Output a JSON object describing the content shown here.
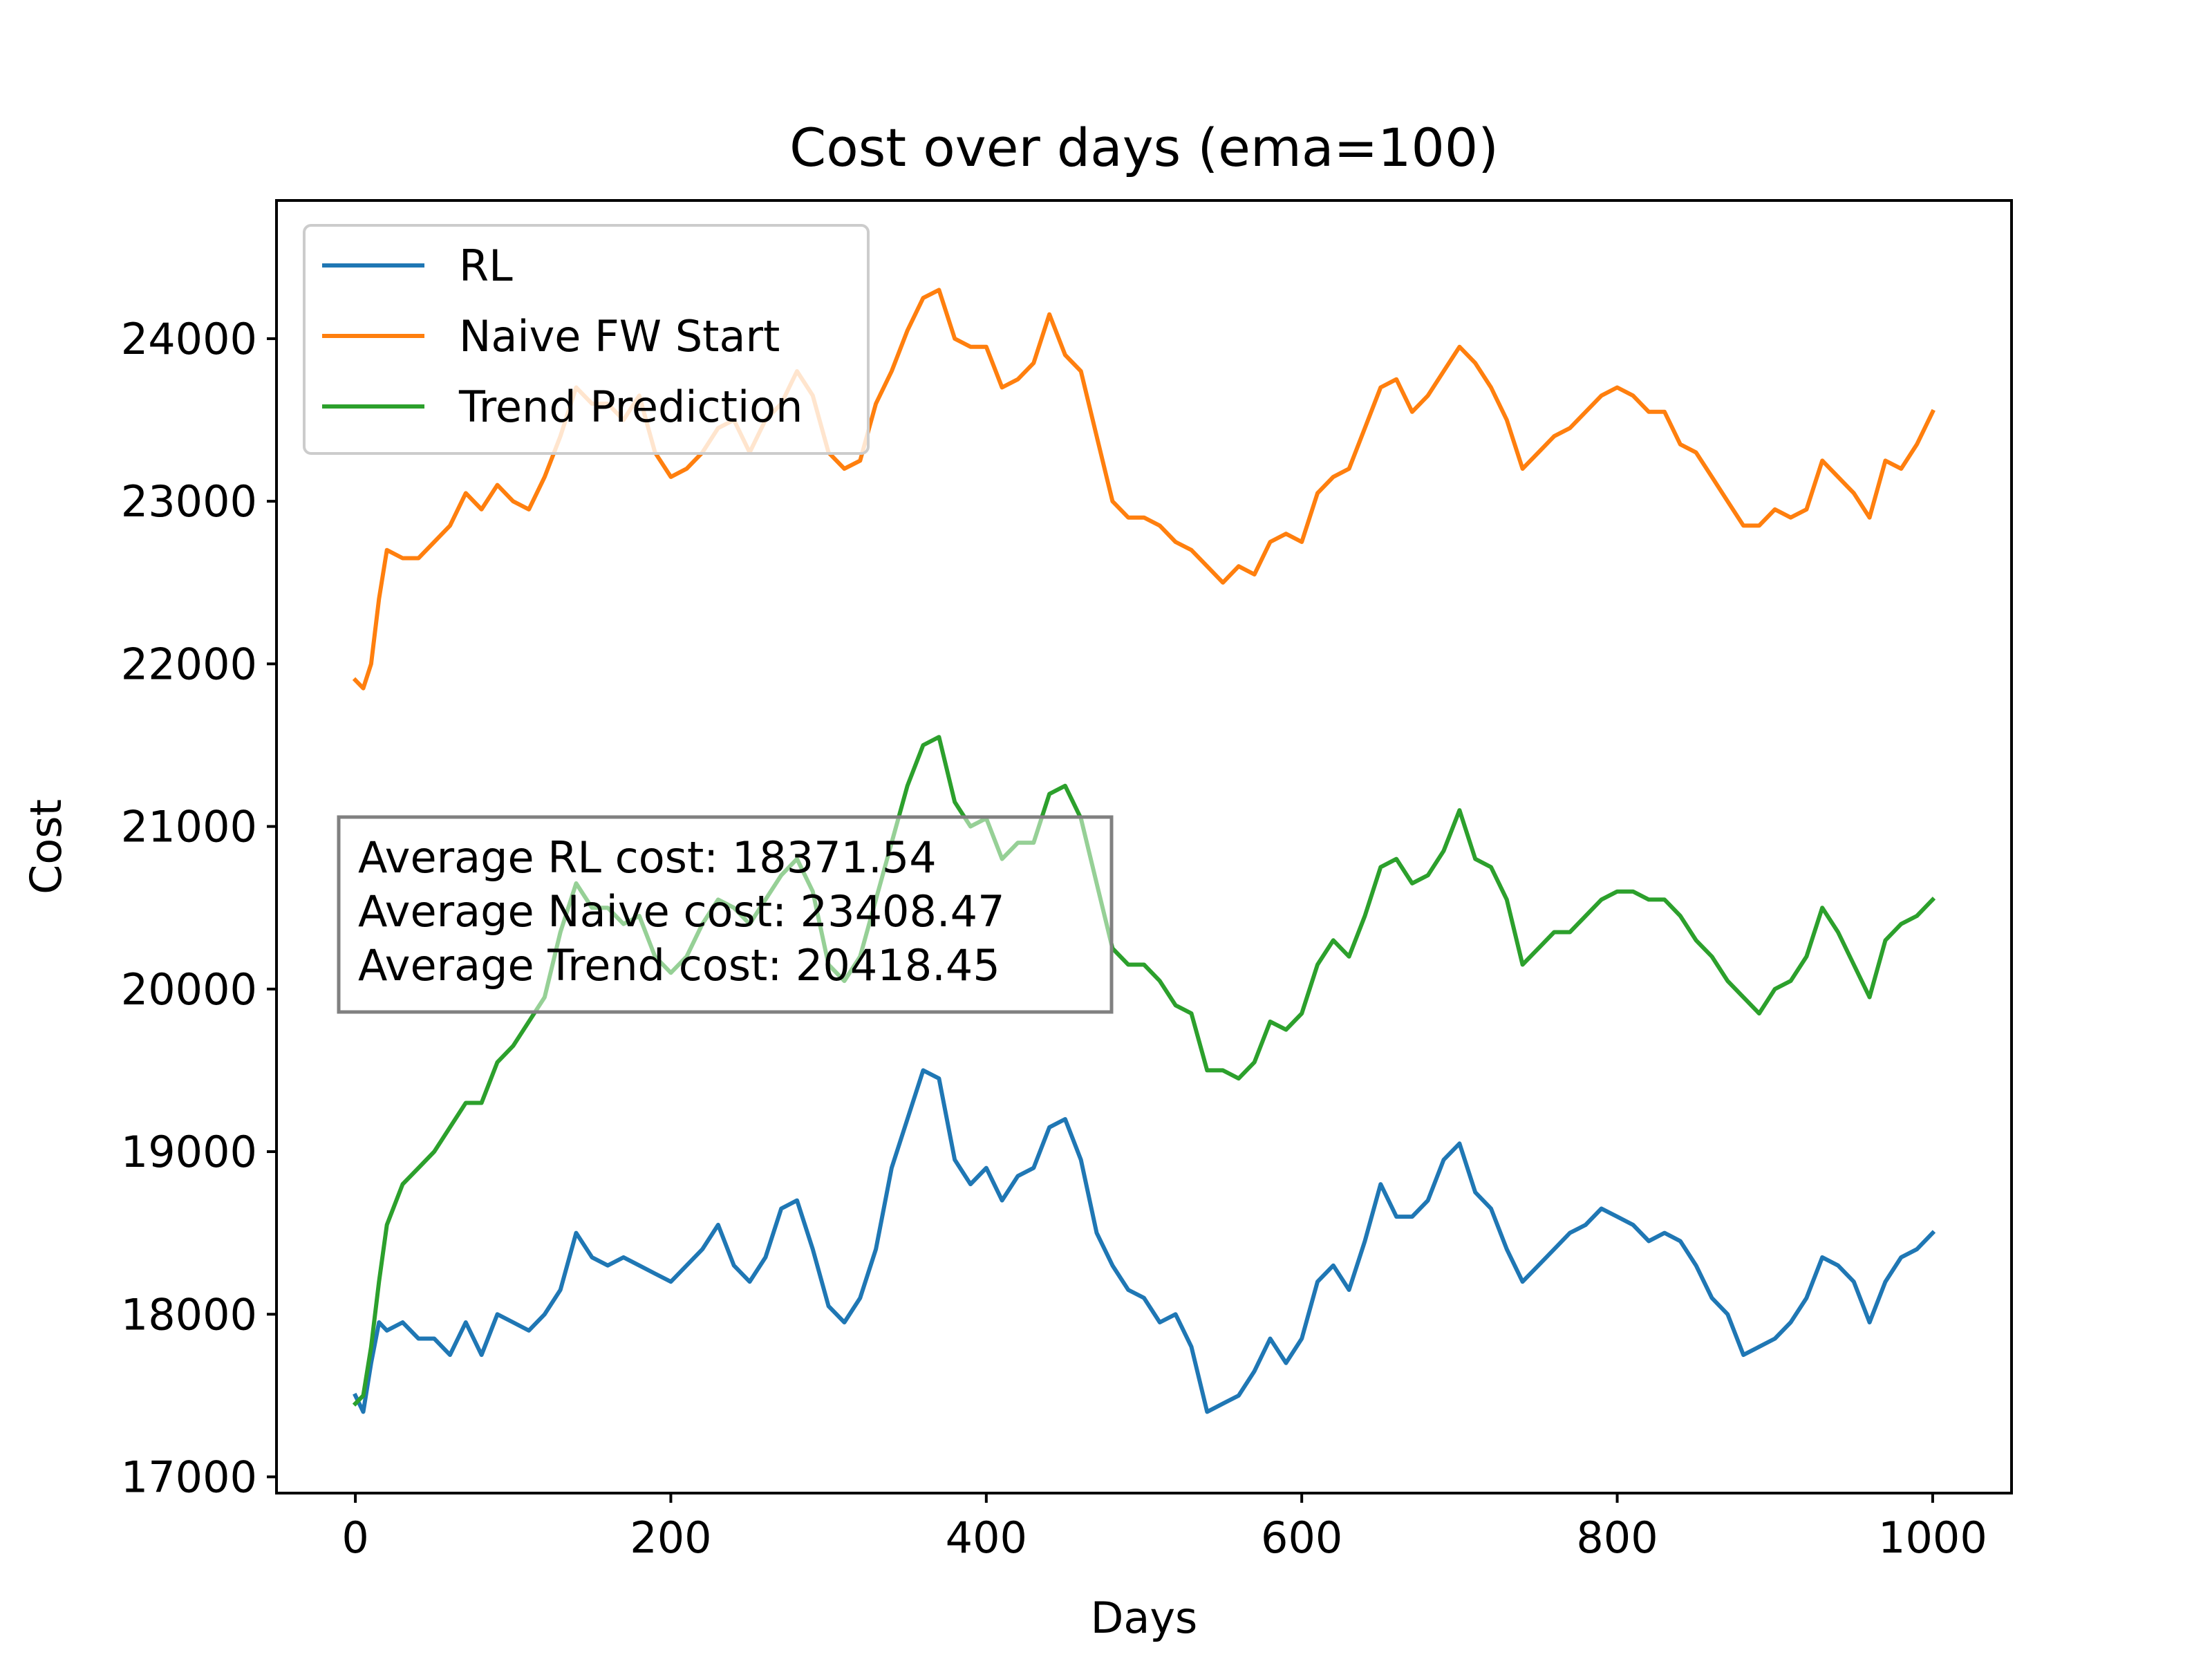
{
  "chart_data": {
    "type": "line",
    "title": "Cost over days (ema=100)",
    "xlabel": "Days",
    "ylabel": "Cost",
    "xlim": [
      -50,
      1050
    ],
    "ylim": [
      16900,
      24850
    ],
    "xticks": [
      0,
      200,
      400,
      600,
      800,
      1000
    ],
    "yticks": [
      17000,
      18000,
      19000,
      20000,
      21000,
      22000,
      23000,
      24000
    ],
    "xtick_labels": [
      "0",
      "200",
      "400",
      "600",
      "800",
      "1000"
    ],
    "ytick_labels": [
      "17000",
      "18000",
      "19000",
      "20000",
      "21000",
      "22000",
      "23000",
      "24000"
    ],
    "grid": false,
    "legend_position": "upper left",
    "series": [
      {
        "name": "RL",
        "color": "#1f77b4",
        "points": [
          [
            0,
            17500
          ],
          [
            5,
            17400
          ],
          [
            10,
            17700
          ],
          [
            15,
            17950
          ],
          [
            20,
            17900
          ],
          [
            30,
            17950
          ],
          [
            40,
            17850
          ],
          [
            50,
            17850
          ],
          [
            60,
            17750
          ],
          [
            70,
            17950
          ],
          [
            80,
            17750
          ],
          [
            90,
            18000
          ],
          [
            100,
            17950
          ],
          [
            110,
            17900
          ],
          [
            120,
            18000
          ],
          [
            130,
            18150
          ],
          [
            140,
            18500
          ],
          [
            150,
            18350
          ],
          [
            160,
            18300
          ],
          [
            170,
            18350
          ],
          [
            180,
            18300
          ],
          [
            190,
            18250
          ],
          [
            200,
            18200
          ],
          [
            210,
            18300
          ],
          [
            220,
            18400
          ],
          [
            230,
            18550
          ],
          [
            240,
            18300
          ],
          [
            250,
            18200
          ],
          [
            260,
            18350
          ],
          [
            270,
            18650
          ],
          [
            280,
            18700
          ],
          [
            290,
            18400
          ],
          [
            300,
            18050
          ],
          [
            310,
            17950
          ],
          [
            320,
            18100
          ],
          [
            330,
            18400
          ],
          [
            340,
            18900
          ],
          [
            350,
            19200
          ],
          [
            360,
            19500
          ],
          [
            370,
            19450
          ],
          [
            380,
            18950
          ],
          [
            390,
            18800
          ],
          [
            400,
            18900
          ],
          [
            410,
            18700
          ],
          [
            420,
            18850
          ],
          [
            430,
            18900
          ],
          [
            440,
            19150
          ],
          [
            450,
            19200
          ],
          [
            460,
            18950
          ],
          [
            470,
            18500
          ],
          [
            480,
            18300
          ],
          [
            490,
            18150
          ],
          [
            500,
            18100
          ],
          [
            510,
            17950
          ],
          [
            520,
            18000
          ],
          [
            530,
            17800
          ],
          [
            540,
            17400
          ],
          [
            550,
            17450
          ],
          [
            560,
            17500
          ],
          [
            570,
            17650
          ],
          [
            580,
            17850
          ],
          [
            590,
            17700
          ],
          [
            600,
            17850
          ],
          [
            610,
            18200
          ],
          [
            620,
            18300
          ],
          [
            630,
            18150
          ],
          [
            640,
            18450
          ],
          [
            650,
            18800
          ],
          [
            660,
            18600
          ],
          [
            670,
            18600
          ],
          [
            680,
            18700
          ],
          [
            690,
            18950
          ],
          [
            700,
            19050
          ],
          [
            710,
            18750
          ],
          [
            720,
            18650
          ],
          [
            730,
            18400
          ],
          [
            740,
            18200
          ],
          [
            750,
            18300
          ],
          [
            760,
            18400
          ],
          [
            770,
            18500
          ],
          [
            780,
            18550
          ],
          [
            790,
            18650
          ],
          [
            800,
            18600
          ],
          [
            810,
            18550
          ],
          [
            820,
            18450
          ],
          [
            830,
            18500
          ],
          [
            840,
            18450
          ],
          [
            850,
            18300
          ],
          [
            860,
            18100
          ],
          [
            870,
            18000
          ],
          [
            880,
            17750
          ],
          [
            890,
            17800
          ],
          [
            900,
            17850
          ],
          [
            910,
            17950
          ],
          [
            920,
            18100
          ],
          [
            930,
            18350
          ],
          [
            940,
            18300
          ],
          [
            950,
            18200
          ],
          [
            960,
            17950
          ],
          [
            970,
            18200
          ],
          [
            980,
            18350
          ],
          [
            990,
            18400
          ],
          [
            1000,
            18500
          ]
        ]
      },
      {
        "name": "Naive FW Start",
        "color": "#ff7f0e",
        "points": [
          [
            0,
            21900
          ],
          [
            5,
            21850
          ],
          [
            10,
            22000
          ],
          [
            15,
            22400
          ],
          [
            20,
            22700
          ],
          [
            30,
            22650
          ],
          [
            40,
            22650
          ],
          [
            50,
            22750
          ],
          [
            60,
            22850
          ],
          [
            70,
            23050
          ],
          [
            80,
            22950
          ],
          [
            90,
            23100
          ],
          [
            100,
            23000
          ],
          [
            110,
            22950
          ],
          [
            120,
            23150
          ],
          [
            130,
            23400
          ],
          [
            140,
            23700
          ],
          [
            150,
            23600
          ],
          [
            160,
            23600
          ],
          [
            170,
            23500
          ],
          [
            180,
            23650
          ],
          [
            190,
            23300
          ],
          [
            200,
            23150
          ],
          [
            210,
            23200
          ],
          [
            220,
            23300
          ],
          [
            230,
            23450
          ],
          [
            240,
            23500
          ],
          [
            250,
            23300
          ],
          [
            260,
            23500
          ],
          [
            270,
            23600
          ],
          [
            280,
            23800
          ],
          [
            290,
            23650
          ],
          [
            300,
            23300
          ],
          [
            310,
            23200
          ],
          [
            320,
            23250
          ],
          [
            330,
            23600
          ],
          [
            340,
            23800
          ],
          [
            350,
            24050
          ],
          [
            360,
            24250
          ],
          [
            370,
            24300
          ],
          [
            380,
            24000
          ],
          [
            390,
            23950
          ],
          [
            400,
            23950
          ],
          [
            410,
            23700
          ],
          [
            420,
            23750
          ],
          [
            430,
            23850
          ],
          [
            440,
            24150
          ],
          [
            450,
            23900
          ],
          [
            460,
            23800
          ],
          [
            470,
            23400
          ],
          [
            480,
            23000
          ],
          [
            490,
            22900
          ],
          [
            500,
            22900
          ],
          [
            510,
            22850
          ],
          [
            520,
            22750
          ],
          [
            530,
            22700
          ],
          [
            540,
            22600
          ],
          [
            550,
            22500
          ],
          [
            560,
            22600
          ],
          [
            570,
            22550
          ],
          [
            580,
            22750
          ],
          [
            590,
            22800
          ],
          [
            600,
            22750
          ],
          [
            610,
            23050
          ],
          [
            620,
            23150
          ],
          [
            630,
            23200
          ],
          [
            640,
            23450
          ],
          [
            650,
            23700
          ],
          [
            660,
            23750
          ],
          [
            670,
            23550
          ],
          [
            680,
            23650
          ],
          [
            690,
            23800
          ],
          [
            700,
            23950
          ],
          [
            710,
            23850
          ],
          [
            720,
            23700
          ],
          [
            730,
            23500
          ],
          [
            740,
            23200
          ],
          [
            750,
            23300
          ],
          [
            760,
            23400
          ],
          [
            770,
            23450
          ],
          [
            780,
            23550
          ],
          [
            790,
            23650
          ],
          [
            800,
            23700
          ],
          [
            810,
            23650
          ],
          [
            820,
            23550
          ],
          [
            830,
            23550
          ],
          [
            840,
            23350
          ],
          [
            850,
            23300
          ],
          [
            860,
            23150
          ],
          [
            870,
            23000
          ],
          [
            880,
            22850
          ],
          [
            890,
            22850
          ],
          [
            900,
            22950
          ],
          [
            910,
            22900
          ],
          [
            920,
            22950
          ],
          [
            930,
            23250
          ],
          [
            940,
            23150
          ],
          [
            950,
            23050
          ],
          [
            960,
            22900
          ],
          [
            970,
            23250
          ],
          [
            980,
            23200
          ],
          [
            990,
            23350
          ],
          [
            1000,
            23550
          ]
        ]
      },
      {
        "name": "Trend Prediction",
        "color": "#2ca02c",
        "points": [
          [
            0,
            17450
          ],
          [
            5,
            17500
          ],
          [
            10,
            17800
          ],
          [
            15,
            18200
          ],
          [
            20,
            18550
          ],
          [
            30,
            18800
          ],
          [
            40,
            18900
          ],
          [
            50,
            19000
          ],
          [
            60,
            19150
          ],
          [
            70,
            19300
          ],
          [
            80,
            19300
          ],
          [
            90,
            19550
          ],
          [
            100,
            19650
          ],
          [
            110,
            19800
          ],
          [
            120,
            19950
          ],
          [
            130,
            20350
          ],
          [
            140,
            20650
          ],
          [
            150,
            20500
          ],
          [
            160,
            20500
          ],
          [
            170,
            20400
          ],
          [
            180,
            20450
          ],
          [
            190,
            20200
          ],
          [
            200,
            20100
          ],
          [
            210,
            20200
          ],
          [
            220,
            20400
          ],
          [
            230,
            20550
          ],
          [
            240,
            20500
          ],
          [
            250,
            20400
          ],
          [
            260,
            20550
          ],
          [
            270,
            20700
          ],
          [
            280,
            20800
          ],
          [
            290,
            20600
          ],
          [
            300,
            20150
          ],
          [
            310,
            20050
          ],
          [
            320,
            20200
          ],
          [
            330,
            20550
          ],
          [
            340,
            20900
          ],
          [
            350,
            21250
          ],
          [
            360,
            21500
          ],
          [
            370,
            21550
          ],
          [
            380,
            21150
          ],
          [
            390,
            21000
          ],
          [
            400,
            21050
          ],
          [
            410,
            20800
          ],
          [
            420,
            20900
          ],
          [
            430,
            20900
          ],
          [
            440,
            21200
          ],
          [
            450,
            21250
          ],
          [
            460,
            21050
          ],
          [
            470,
            20650
          ],
          [
            480,
            20250
          ],
          [
            490,
            20150
          ],
          [
            500,
            20150
          ],
          [
            510,
            20050
          ],
          [
            520,
            19900
          ],
          [
            530,
            19850
          ],
          [
            540,
            19500
          ],
          [
            550,
            19500
          ],
          [
            560,
            19450
          ],
          [
            570,
            19550
          ],
          [
            580,
            19800
          ],
          [
            590,
            19750
          ],
          [
            600,
            19850
          ],
          [
            610,
            20150
          ],
          [
            620,
            20300
          ],
          [
            630,
            20200
          ],
          [
            640,
            20450
          ],
          [
            650,
            20750
          ],
          [
            660,
            20800
          ],
          [
            670,
            20650
          ],
          [
            680,
            20700
          ],
          [
            690,
            20850
          ],
          [
            700,
            21100
          ],
          [
            710,
            20800
          ],
          [
            720,
            20750
          ],
          [
            730,
            20550
          ],
          [
            740,
            20150
          ],
          [
            750,
            20250
          ],
          [
            760,
            20350
          ],
          [
            770,
            20350
          ],
          [
            780,
            20450
          ],
          [
            790,
            20550
          ],
          [
            800,
            20600
          ],
          [
            810,
            20600
          ],
          [
            820,
            20550
          ],
          [
            830,
            20550
          ],
          [
            840,
            20450
          ],
          [
            850,
            20300
          ],
          [
            860,
            20200
          ],
          [
            870,
            20050
          ],
          [
            880,
            19950
          ],
          [
            890,
            19850
          ],
          [
            900,
            20000
          ],
          [
            910,
            20050
          ],
          [
            920,
            20200
          ],
          [
            930,
            20500
          ],
          [
            940,
            20350
          ],
          [
            950,
            20150
          ],
          [
            960,
            19950
          ],
          [
            970,
            20300
          ],
          [
            980,
            20400
          ],
          [
            990,
            20450
          ],
          [
            1000,
            20550
          ]
        ]
      }
    ],
    "annotation": [
      "Average RL cost: 18371.54",
      "Average Naive cost: 23408.47",
      "Average Trend cost: 20418.45"
    ]
  }
}
